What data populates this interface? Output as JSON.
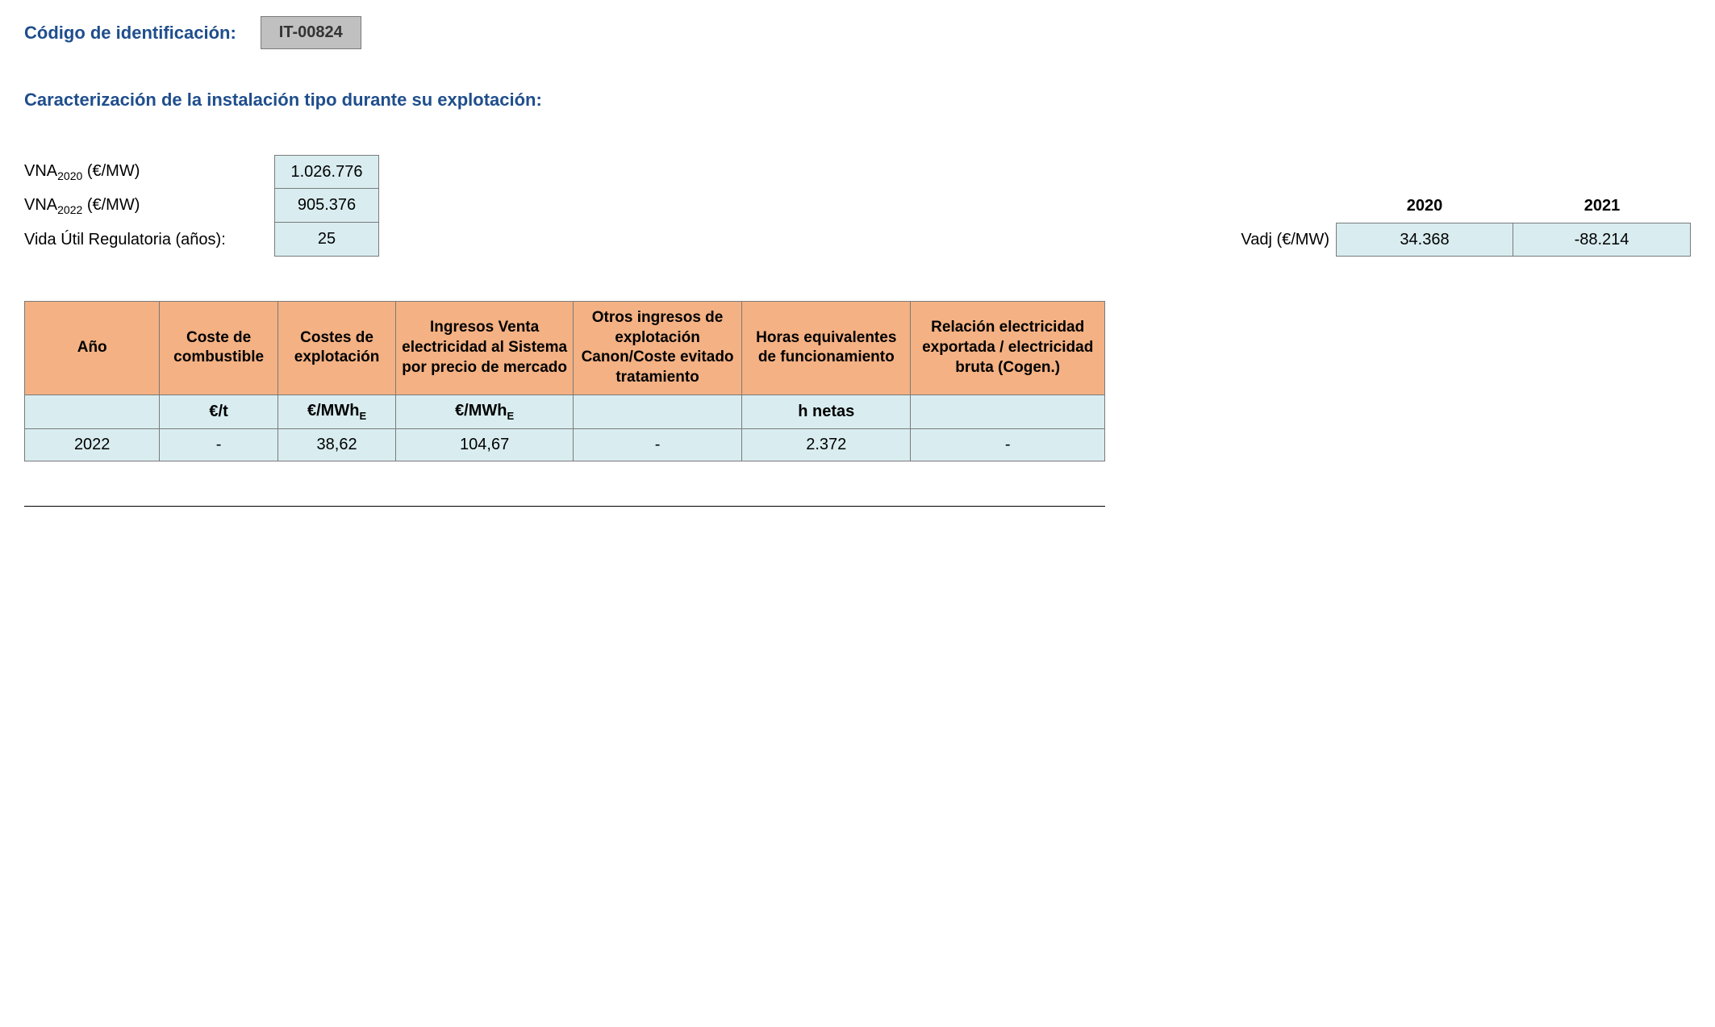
{
  "header": {
    "label": "Código de identificación:",
    "code": "IT-00824"
  },
  "section_title": "Caracterización de la instalación tipo durante su explotación:",
  "left_params": {
    "vna2020": {
      "label_pre": "VNA",
      "label_sub": "2020",
      "label_post": " (€/MW)",
      "value": "1.026.776"
    },
    "vna2022": {
      "label_pre": "VNA",
      "label_sub": "2022",
      "label_post": " (€/MW)",
      "value": "905.376"
    },
    "vida": {
      "label": "Vida Útil Regulatoria (años):",
      "value": "25"
    }
  },
  "right_params": {
    "year_a": "2020",
    "year_b": "2021",
    "vadj_label": "Vadj (€/MW)",
    "vadj_a": "34.368",
    "vadj_b": "-88.214"
  },
  "table": {
    "headers": {
      "ano": "Año",
      "comb": "Coste de combustible",
      "expl": "Costes de explotación",
      "ing": "Ingresos Venta electricidad al Sistema por precio de mercado",
      "otros": "Otros ingresos de explotación Canon/Coste evitado tratamiento",
      "horas": "Horas equivalentes de funcionamiento",
      "rel": "Relación electricidad exportada / electricidad bruta (Cogen.)"
    },
    "units": {
      "ano": "",
      "comb": "€/t",
      "expl_pre": "€/MWh",
      "expl_sub": "E",
      "ing_pre": "€/MWh",
      "ing_sub": "E",
      "otros": "",
      "horas": "h netas",
      "rel": ""
    },
    "row": {
      "ano": "2022",
      "comb": "-",
      "expl": "38,62",
      "ing": "104,67",
      "otros": "-",
      "horas": "2.372",
      "rel": "-"
    },
    "colors": {
      "header_bg": "#f4b183",
      "cell_bg": "#d9edf0",
      "border": "#7a7a7a"
    }
  }
}
